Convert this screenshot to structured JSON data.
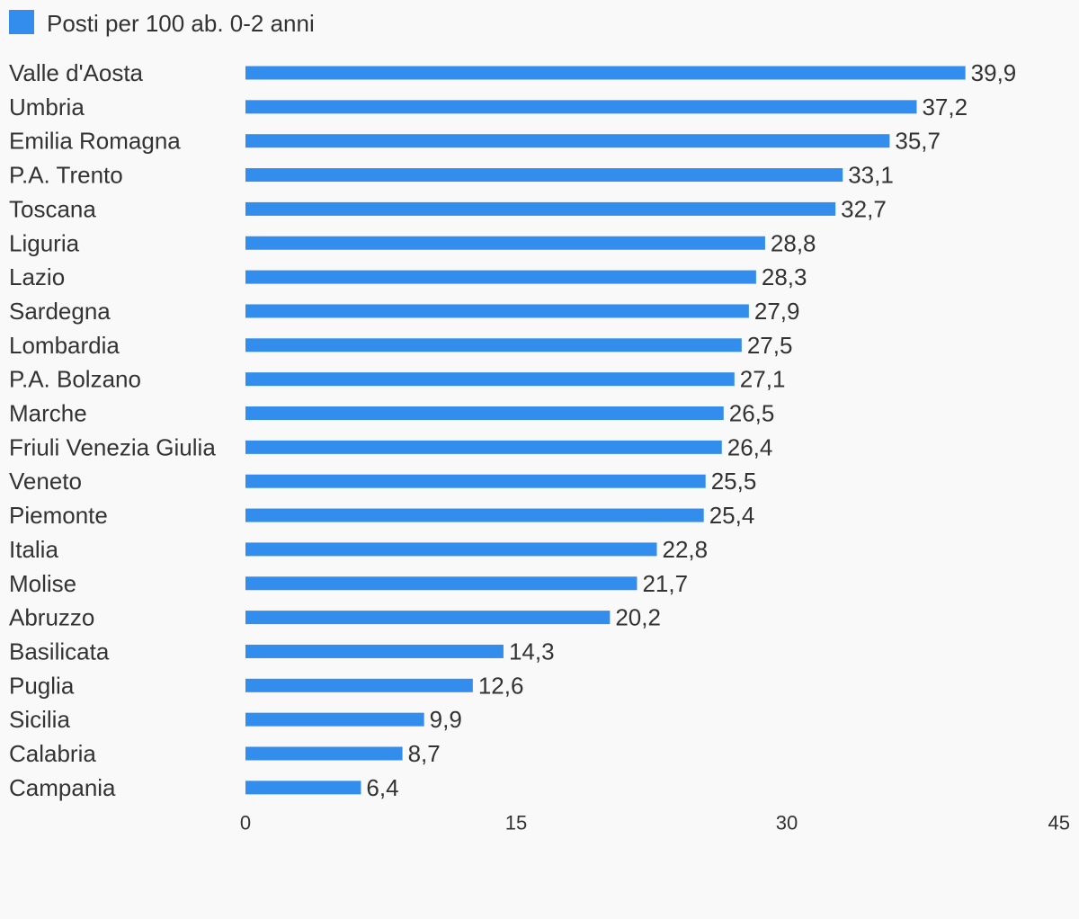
{
  "chart_data": {
    "type": "bar",
    "orientation": "horizontal",
    "legend_position": "top-left",
    "grid": false,
    "series": [
      {
        "name": "Posti per 100 ab. 0-2 anni",
        "color": "#338ded",
        "values": [
          39.9,
          37.2,
          35.7,
          33.1,
          32.7,
          28.8,
          28.3,
          27.9,
          27.5,
          27.1,
          26.5,
          26.4,
          25.5,
          25.4,
          22.8,
          21.7,
          20.2,
          14.3,
          12.6,
          9.9,
          8.7,
          6.4
        ]
      }
    ],
    "categories": [
      "Valle d'Aosta",
      "Umbria",
      "Emilia Romagna",
      "P.A. Trento",
      "Toscana",
      "Liguria",
      "Lazio",
      "Sardegna",
      "Lombardia",
      "P.A. Bolzano",
      "Marche",
      "Friuli Venezia Giulia",
      "Veneto",
      "Piemonte",
      "Italia",
      "Molise",
      "Abruzzo",
      "Basilicata",
      "Puglia",
      "Sicilia",
      "Calabria",
      "Campania"
    ],
    "value_labels": [
      "39,9",
      "37,2",
      "35,7",
      "33,1",
      "32,7",
      "28,8",
      "28,3",
      "27,9",
      "27,5",
      "27,1",
      "26,5",
      "26,4",
      "25,5",
      "25,4",
      "22,8",
      "21,7",
      "20,2",
      "14,3",
      "12,6",
      "9,9",
      "8,7",
      "6,4"
    ],
    "xlim": [
      0,
      45
    ],
    "xticks": [
      0,
      15,
      30,
      45
    ],
    "xtick_labels": [
      "0",
      "15",
      "30",
      "45"
    ]
  }
}
